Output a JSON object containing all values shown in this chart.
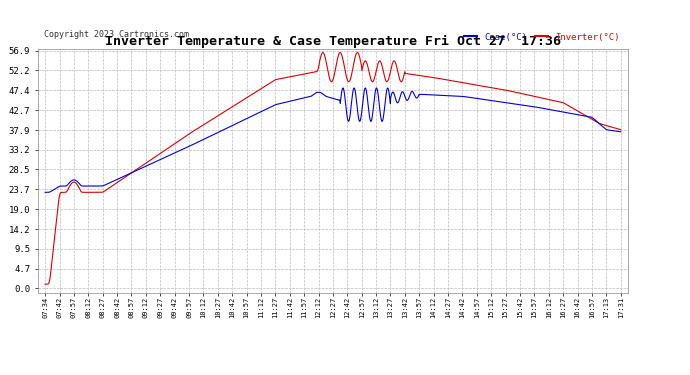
{
  "title": "Inverter Temperature & Case Temperature Fri Oct 27  17:36",
  "copyright": "Copyright 2023 Cartronics.com",
  "legend_case": "Case(°C)",
  "legend_inverter": "Inverter(°C)",
  "yticks": [
    0.0,
    4.7,
    9.5,
    14.2,
    19.0,
    23.7,
    28.5,
    33.2,
    37.9,
    42.7,
    47.4,
    52.2,
    56.9
  ],
  "ymin": 0.0,
  "ymax": 56.9,
  "bg_color": "#ffffff",
  "plot_bg_color": "#ffffff",
  "grid_color": "#bbbbbb",
  "case_color": "#0000dd",
  "inverter_color": "#dd0000",
  "title_color": "#000000",
  "xtick_labels": [
    "07:34",
    "07:42",
    "07:57",
    "08:12",
    "08:27",
    "08:42",
    "08:57",
    "09:12",
    "09:27",
    "09:42",
    "09:57",
    "10:12",
    "10:27",
    "10:42",
    "10:57",
    "11:12",
    "11:27",
    "11:42",
    "11:57",
    "12:12",
    "12:27",
    "12:42",
    "12:57",
    "13:12",
    "13:27",
    "13:42",
    "13:57",
    "14:12",
    "14:27",
    "14:42",
    "14:57",
    "15:12",
    "15:27",
    "15:42",
    "15:57",
    "16:12",
    "16:27",
    "16:42",
    "16:57",
    "17:13",
    "17:31"
  ]
}
